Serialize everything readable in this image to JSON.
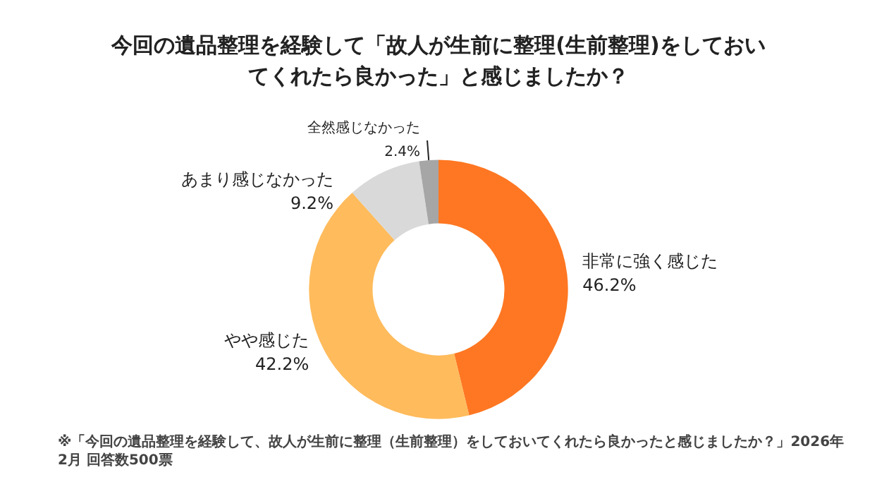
{
  "chart_data": {
    "type": "donut",
    "title": "今回の遺品整理を経験して「故人が生前に整理(生前整理)をしておいてくれたら良かった」と感じましたか？",
    "categories": [
      "非常に強く感じた",
      "やや感じた",
      "あまり感じなかった",
      "全然感じなかった"
    ],
    "values": [
      46.2,
      42.2,
      9.2,
      2.4
    ],
    "value_labels": [
      "46.2%",
      "42.2%",
      "9.2%",
      "2.4%"
    ],
    "colors": [
      "#ff7722",
      "#ffbb5c",
      "#d9d9d9",
      "#a6a6a6"
    ],
    "legend": false,
    "annotations": [
      "※「今回の遺品整理を経験して、故人が生前に整理（生前整理）をしておいてくれたら良かったと感じましたか？」2026年2月 回答数500票"
    ]
  }
}
